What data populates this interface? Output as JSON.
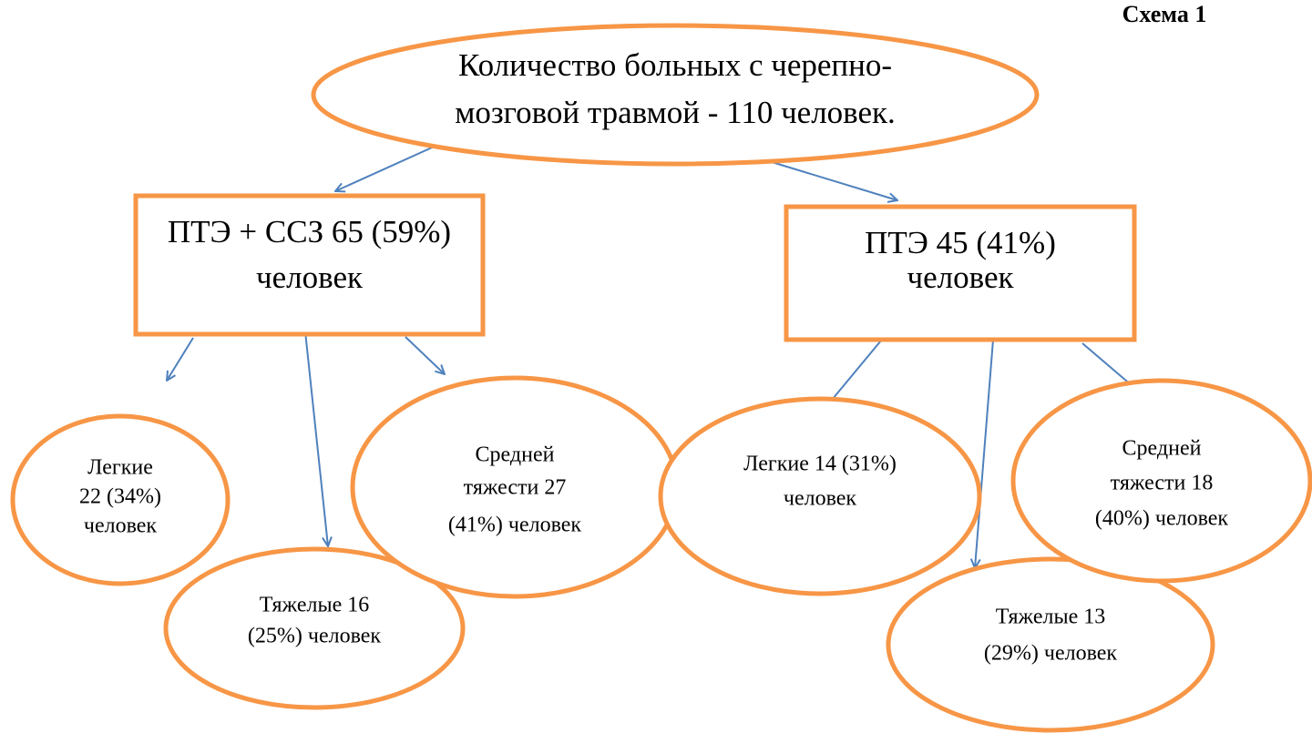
{
  "title": "Схема 1",
  "nodes": [
    {
      "lines": [
        "Количество больных с черепно-",
        "мозговой травмой - 110 человек."
      ]
    },
    {
      "lines": [
        "ПТЭ + ССЗ 65 (59%)",
        "человек"
      ]
    },
    {
      "lines": [
        "ПТЭ 45 (41%)",
        "человек"
      ]
    },
    {
      "lines": [
        "Легкие",
        "22 (34%)",
        "человек"
      ]
    },
    {
      "lines": [
        "Тяжелые 16",
        "(25%) человек"
      ]
    },
    {
      "lines": [
        "Средней",
        "тяжести 27",
        "(41%) человек"
      ]
    },
    {
      "lines": [
        "Легкие 14 (31%)",
        "человек"
      ]
    },
    {
      "lines": [
        "Тяжелые 13",
        "(29%) человек"
      ]
    },
    {
      "lines": [
        "Средней",
        "тяжести 18",
        "(40%) человек"
      ]
    }
  ]
}
